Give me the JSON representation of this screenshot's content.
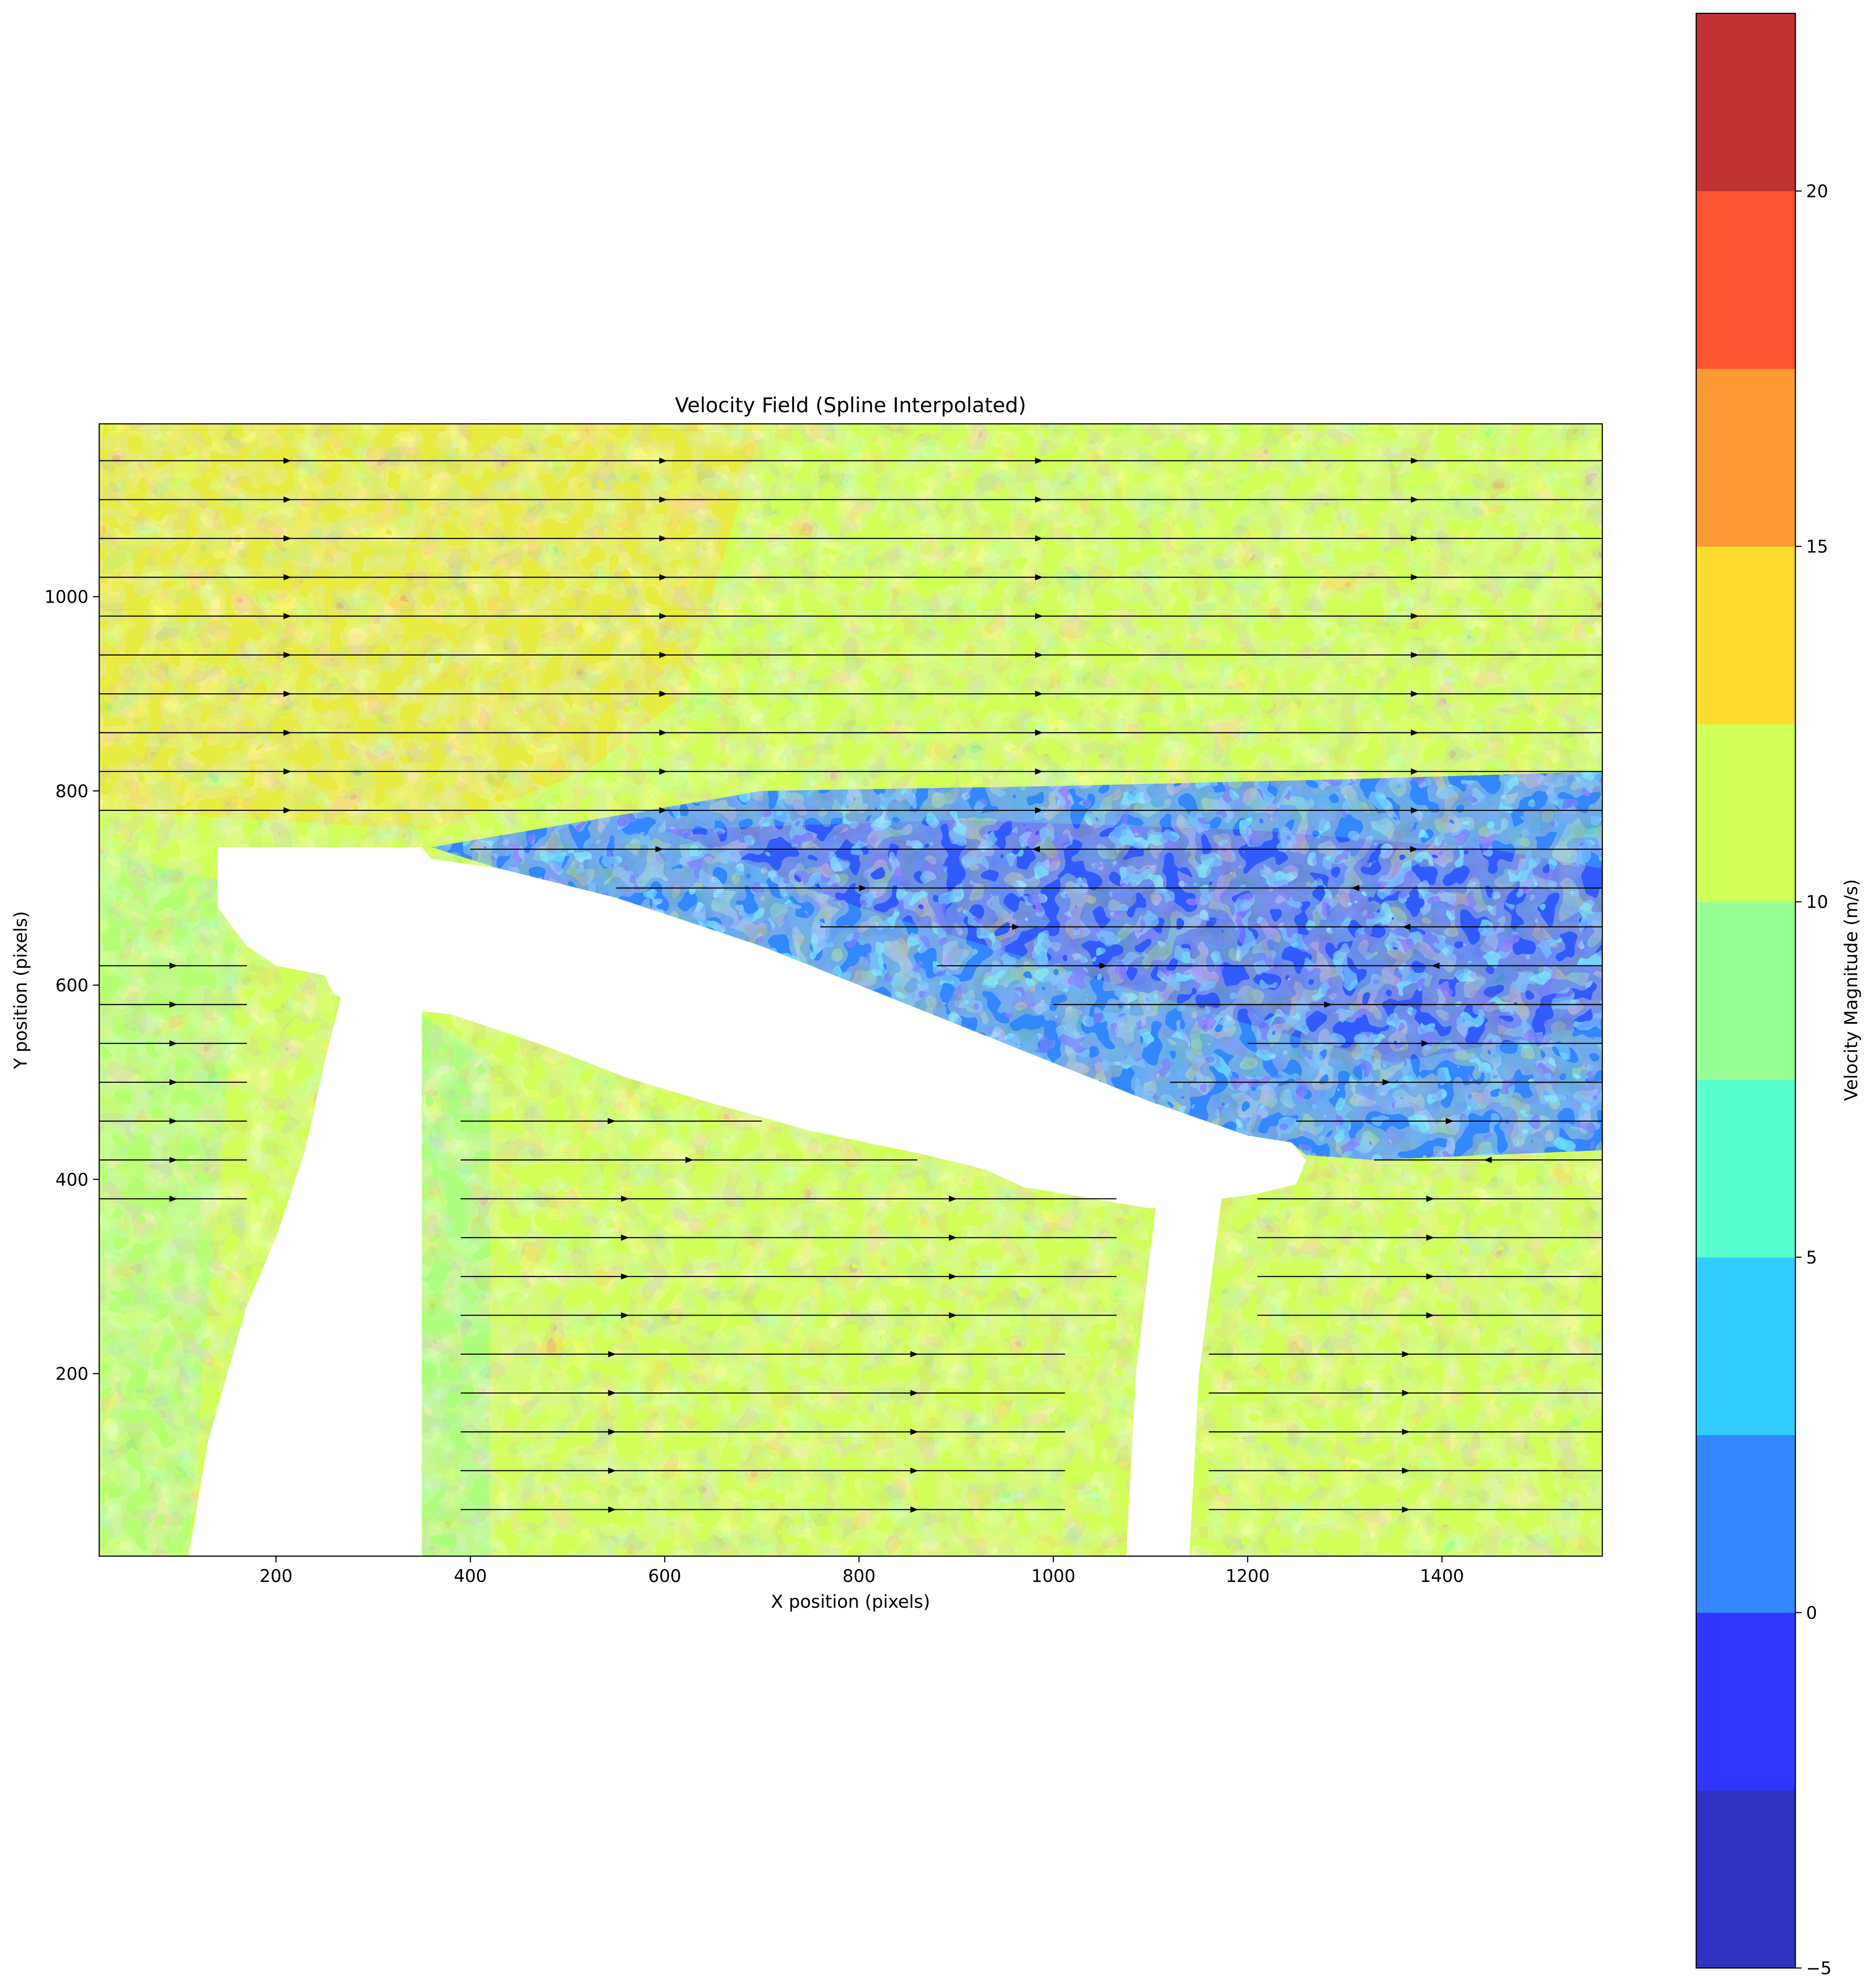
{
  "chart_data": {
    "type": "heatmap",
    "subtype": "filled-contour with streamlines",
    "title": "Velocity Field (Spline Interpolated)",
    "xlabel": "X position (pixels)",
    "ylabel": "Y position (pixels)",
    "xlim": [
      18,
      1565
    ],
    "ylim": [
      12,
      1178
    ],
    "xticks": [
      200,
      400,
      600,
      800,
      1000,
      1200,
      1400
    ],
    "yticks": [
      200,
      400,
      600,
      800,
      1000
    ],
    "colorbar": {
      "label": "Velocity Magnitude (m/s)",
      "range": [
        -5,
        22.5
      ],
      "ticks": [
        -5,
        0,
        5,
        10,
        15,
        20
      ],
      "levels": [
        -5,
        -2.5,
        0,
        2.5,
        5,
        7.5,
        10,
        12.5,
        15,
        17.5,
        20,
        22.5
      ],
      "colors": [
        "#2f33c2",
        "#2f37ff",
        "#3387ff",
        "#31cdff",
        "#5affd0",
        "#96fe94",
        "#d0ff58",
        "#fcdb2d",
        "#fd9932",
        "#ff5533",
        "#c03232"
      ]
    },
    "grid": false,
    "regions": [
      {
        "name": "free stream (upper)",
        "typical_velocity": 12,
        "color": "#d0ff58"
      },
      {
        "name": "wake region",
        "typical_velocity": 2,
        "color": "#3387ff"
      },
      {
        "name": "lower flow",
        "typical_velocity": 11,
        "color": "#d0ff58"
      }
    ],
    "obstacles": [
      {
        "name": "wing body",
        "polygon": [
          [
            140,
            742
          ],
          [
            350,
            742
          ],
          [
            360,
            730
          ],
          [
            430,
            720
          ],
          [
            550,
            690
          ],
          [
            700,
            640
          ],
          [
            850,
            580
          ],
          [
            1000,
            520
          ],
          [
            1100,
            480
          ],
          [
            1200,
            445
          ],
          [
            1245,
            438
          ],
          [
            1260,
            420
          ],
          [
            1250,
            395
          ],
          [
            1210,
            385
          ],
          [
            1100,
            370
          ],
          [
            970,
            392
          ],
          [
            930,
            410
          ],
          [
            870,
            425
          ],
          [
            750,
            450
          ],
          [
            650,
            478
          ],
          [
            560,
            505
          ],
          [
            470,
            540
          ],
          [
            380,
            570
          ],
          [
            290,
            580
          ],
          [
            260,
            590
          ],
          [
            250,
            610
          ],
          [
            200,
            620
          ],
          [
            170,
            640
          ],
          [
            140,
            680
          ]
        ]
      },
      {
        "name": "left strut",
        "polygon": [
          [
            270,
            600
          ],
          [
            350,
            600
          ],
          [
            350,
            12
          ],
          [
            110,
            12
          ],
          [
            130,
            130
          ],
          [
            170,
            270
          ],
          [
            200,
            340
          ],
          [
            230,
            430
          ],
          [
            250,
            520
          ]
        ]
      },
      {
        "name": "right strut",
        "polygon": [
          [
            1108,
            395
          ],
          [
            1175,
            395
          ],
          [
            1150,
            200
          ],
          [
            1140,
            12
          ],
          [
            1075,
            12
          ],
          [
            1085,
            200
          ]
        ]
      }
    ],
    "streamlines": [
      {
        "y": 1140,
        "x": [
          18,
          1565
        ],
        "direction": "right"
      },
      {
        "y": 1100,
        "x": [
          18,
          1565
        ],
        "direction": "right"
      },
      {
        "y": 1060,
        "x": [
          18,
          1565
        ],
        "direction": "right"
      },
      {
        "y": 1020,
        "x": [
          18,
          1565
        ],
        "direction": "right"
      },
      {
        "y": 980,
        "x": [
          18,
          1565
        ],
        "direction": "right"
      },
      {
        "y": 940,
        "x": [
          18,
          1565
        ],
        "direction": "right"
      },
      {
        "y": 900,
        "x": [
          18,
          1565
        ],
        "direction": "right"
      },
      {
        "y": 860,
        "x": [
          18,
          1565
        ],
        "direction": "right"
      },
      {
        "y": 820,
        "x": [
          18,
          1565
        ],
        "direction": "right"
      },
      {
        "y": 780,
        "x": [
          18,
          1565
        ],
        "direction": "right"
      },
      {
        "y": 740,
        "x": [
          400,
          1565
        ],
        "direction": "mixed"
      },
      {
        "y": 700,
        "x": [
          550,
          1565
        ],
        "direction": "mixed"
      },
      {
        "y": 660,
        "x": [
          760,
          1565
        ],
        "direction": "mixed"
      },
      {
        "y": 620,
        "x": [
          18,
          170
        ],
        "direction": "right"
      },
      {
        "y": 620,
        "x": [
          880,
          1565
        ],
        "direction": "mixed"
      },
      {
        "y": 580,
        "x": [
          18,
          170
        ],
        "direction": "right"
      },
      {
        "y": 580,
        "x": [
          1000,
          1565
        ],
        "direction": "mixed"
      },
      {
        "y": 540,
        "x": [
          18,
          170
        ],
        "direction": "right"
      },
      {
        "y": 540,
        "x": [
          1200,
          1565
        ],
        "direction": "mixed"
      },
      {
        "y": 500,
        "x": [
          18,
          170
        ],
        "direction": "right"
      },
      {
        "y": 500,
        "x": [
          1120,
          1565
        ],
        "direction": "mixed"
      },
      {
        "y": 460,
        "x": [
          18,
          170
        ],
        "direction": "right"
      },
      {
        "y": 460,
        "x": [
          390,
          700
        ],
        "direction": "right"
      },
      {
        "y": 460,
        "x": [
          1250,
          1565
        ],
        "direction": "right"
      },
      {
        "y": 420,
        "x": [
          18,
          170
        ],
        "direction": "right"
      },
      {
        "y": 420,
        "x": [
          390,
          860
        ],
        "direction": "right"
      },
      {
        "y": 420,
        "x": [
          1330,
          1565
        ],
        "direction": "left"
      },
      {
        "y": 380,
        "x": [
          18,
          170
        ],
        "direction": "right"
      },
      {
        "y": 380,
        "x": [
          390,
          1065
        ],
        "direction": "right"
      },
      {
        "y": 380,
        "x": [
          1210,
          1565
        ],
        "direction": "right"
      },
      {
        "y": 340,
        "x": [
          390,
          1065
        ],
        "direction": "right"
      },
      {
        "y": 340,
        "x": [
          1210,
          1565
        ],
        "direction": "right"
      },
      {
        "y": 300,
        "x": [
          390,
          1065
        ],
        "direction": "right"
      },
      {
        "y": 300,
        "x": [
          1210,
          1565
        ],
        "direction": "right"
      },
      {
        "y": 260,
        "x": [
          390,
          1065
        ],
        "direction": "right"
      },
      {
        "y": 260,
        "x": [
          1210,
          1565
        ],
        "direction": "right"
      },
      {
        "y": 220,
        "x": [
          390,
          1012
        ],
        "direction": "right"
      },
      {
        "y": 220,
        "x": [
          1160,
          1565
        ],
        "direction": "right"
      },
      {
        "y": 180,
        "x": [
          390,
          1012
        ],
        "direction": "right"
      },
      {
        "y": 180,
        "x": [
          1160,
          1565
        ],
        "direction": "right"
      },
      {
        "y": 140,
        "x": [
          390,
          1012
        ],
        "direction": "right"
      },
      {
        "y": 140,
        "x": [
          1160,
          1565
        ],
        "direction": "right"
      },
      {
        "y": 100,
        "x": [
          390,
          1012
        ],
        "direction": "right"
      },
      {
        "y": 100,
        "x": [
          1160,
          1565
        ],
        "direction": "right"
      },
      {
        "y": 60,
        "x": [
          390,
          1012
        ],
        "direction": "right"
      },
      {
        "y": 60,
        "x": [
          1160,
          1565
        ],
        "direction": "right"
      }
    ]
  }
}
